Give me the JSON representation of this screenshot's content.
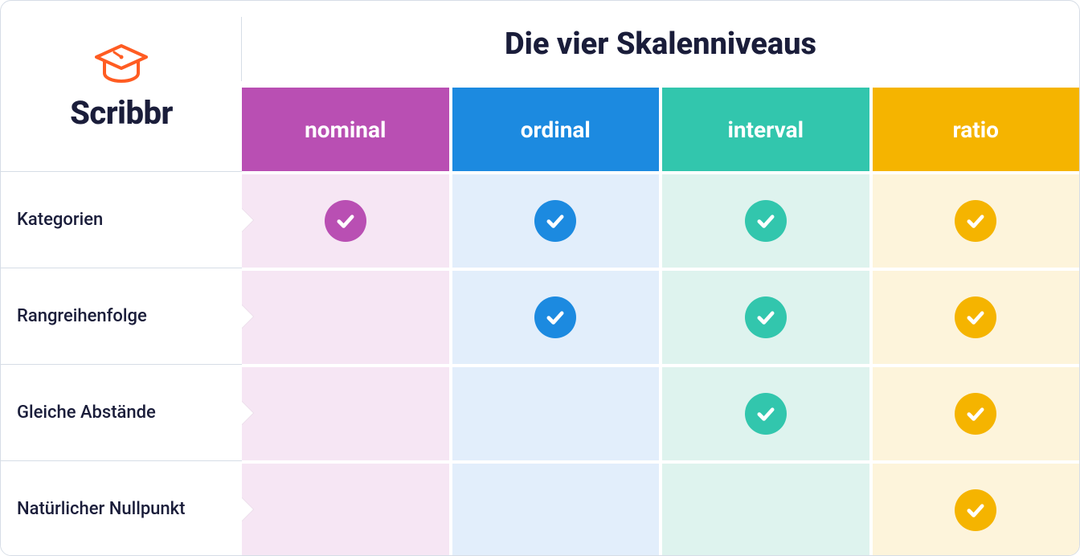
{
  "brand": {
    "name": "Scribbr",
    "icon_color": "#ff5c22",
    "text_color": "#1a1d3a"
  },
  "title": "Die vier Skalenniveaus",
  "title_color": "#1a1d3a",
  "table": {
    "type": "table",
    "columns": [
      {
        "key": "nominal",
        "label": "nominal",
        "header_bg": "#b94fb3",
        "cell_bg": "#f6e6f4",
        "check_color": "#b94fb3"
      },
      {
        "key": "ordinal",
        "label": "ordinal",
        "header_bg": "#1c8ae0",
        "cell_bg": "#e2eefb",
        "check_color": "#1c8ae0"
      },
      {
        "key": "interval",
        "label": "interval",
        "header_bg": "#32c6ad",
        "cell_bg": "#def3ee",
        "check_color": "#32c6ad"
      },
      {
        "key": "ratio",
        "label": "ratio",
        "header_bg": "#f5b400",
        "cell_bg": "#fdf4db",
        "check_color": "#f5b400"
      }
    ],
    "rows": [
      {
        "label": "Kategorien",
        "values": [
          true,
          true,
          true,
          true
        ]
      },
      {
        "label": "Rangreihenfolge",
        "values": [
          false,
          true,
          true,
          true
        ]
      },
      {
        "label": "Gleiche Abstände",
        "values": [
          false,
          false,
          true,
          true
        ]
      },
      {
        "label": "Natürlicher Nullpunkt",
        "values": [
          false,
          false,
          false,
          true
        ]
      }
    ],
    "row_label_color": "#1a1d3a",
    "border_color": "#d6dde6",
    "check_mark_color": "#ffffff"
  }
}
